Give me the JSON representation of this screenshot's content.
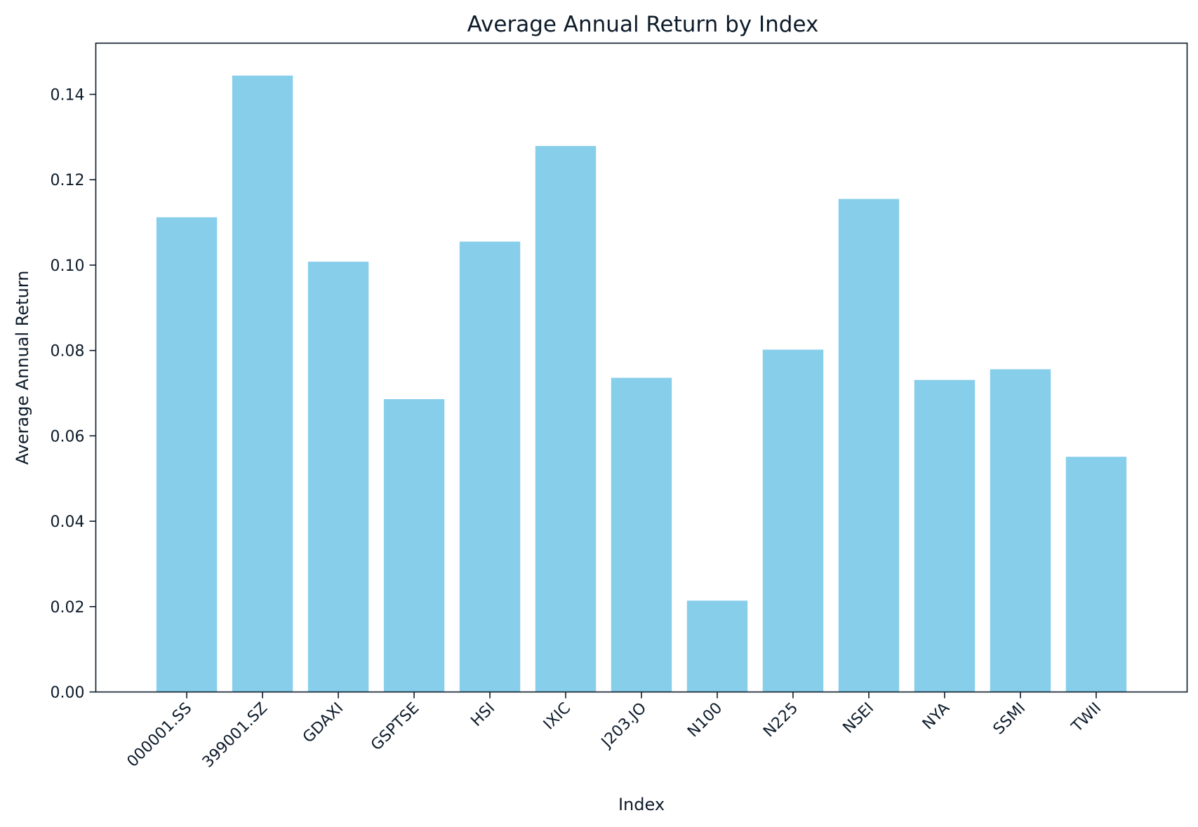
{
  "colors": {
    "bar": "#87CEEB",
    "axis": "#0d1b2a",
    "text": "#0d1b2a",
    "background": "#ffffff"
  },
  "chart_data": {
    "type": "bar",
    "title": "Average Annual Return by Index",
    "xlabel": "Index",
    "ylabel": "Average Annual Return",
    "categories": [
      "000001.SS",
      "399001.SZ",
      "GDAXI",
      "GSPTSE",
      "HSI",
      "IXIC",
      "J203.JO",
      "N100",
      "N225",
      "NSEI",
      "NYA",
      "SSMI",
      "TWII"
    ],
    "values": [
      0.1112,
      0.1444,
      0.1008,
      0.0686,
      0.1055,
      0.1279,
      0.0736,
      0.0214,
      0.0802,
      0.1155,
      0.0731,
      0.0756,
      0.0551
    ],
    "ylim": [
      0,
      0.152
    ],
    "yticks": [
      0.0,
      0.02,
      0.04,
      0.06,
      0.08,
      0.1,
      0.12,
      0.14
    ],
    "ytick_labels": [
      "0.00",
      "0.02",
      "0.04",
      "0.06",
      "0.08",
      "0.10",
      "0.12",
      "0.14"
    ],
    "xtick_rotation": 45,
    "grid": false,
    "legend": "none"
  }
}
